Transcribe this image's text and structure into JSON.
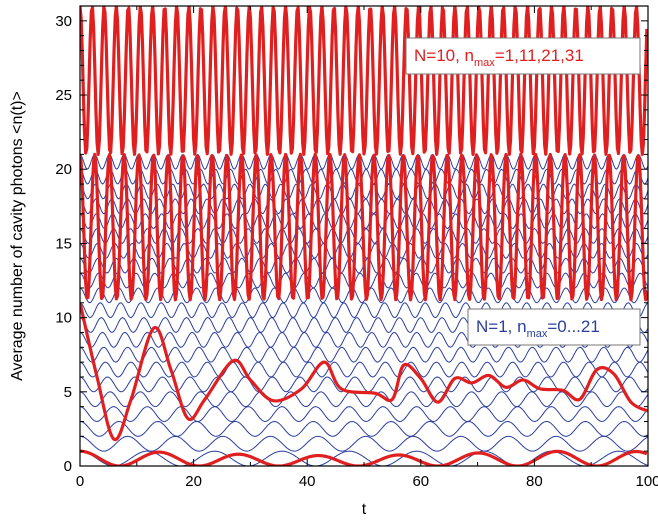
{
  "chart_data": {
    "type": "line",
    "title": "",
    "xlabel": "t",
    "ylabel": "Average number of cavity photons <n(t)>",
    "xlim": [
      0,
      100
    ],
    "ylim": [
      0,
      31
    ],
    "x_ticks": [
      0,
      20,
      40,
      60,
      80,
      100
    ],
    "y_ticks": [
      0,
      5,
      10,
      15,
      20,
      25,
      30
    ],
    "grid": false,
    "legends": [
      {
        "placement": "top-right",
        "main": "N=10, n",
        "sub": "max",
        "tail": "=1,11,21,31",
        "color": "#e02020"
      },
      {
        "placement": "middle-right",
        "main": "N=1, n",
        "sub": "max",
        "tail": "=0...21",
        "color": "#2b3f9e"
      }
    ],
    "colors": {
      "thin_series": "#2b3f9e",
      "thick_series": "#e02020"
    },
    "series": [
      {
        "group": "thin",
        "n_max": 0,
        "x_range": [
          0,
          100
        ],
        "y_min": 0,
        "y_max": 0
      },
      {
        "group": "thin",
        "n_max": 1,
        "x_range": [
          0,
          100
        ],
        "y_min": 0,
        "y_max": 1
      },
      {
        "group": "thin",
        "n_max": 2,
        "x_range": [
          0,
          100
        ],
        "y_min": 1,
        "y_max": 2
      },
      {
        "group": "thin",
        "n_max": 3,
        "x_range": [
          0,
          100
        ],
        "y_min": 2,
        "y_max": 3
      },
      {
        "group": "thin",
        "n_max": 4,
        "x_range": [
          0,
          100
        ],
        "y_min": 3,
        "y_max": 4
      },
      {
        "group": "thin",
        "n_max": 5,
        "x_range": [
          0,
          100
        ],
        "y_min": 4,
        "y_max": 5
      },
      {
        "group": "thin",
        "n_max": 6,
        "x_range": [
          0,
          100
        ],
        "y_min": 5,
        "y_max": 6
      },
      {
        "group": "thin",
        "n_max": 7,
        "x_range": [
          0,
          100
        ],
        "y_min": 6,
        "y_max": 7
      },
      {
        "group": "thin",
        "n_max": 8,
        "x_range": [
          0,
          100
        ],
        "y_min": 7,
        "y_max": 8
      },
      {
        "group": "thin",
        "n_max": 9,
        "x_range": [
          0,
          100
        ],
        "y_min": 8,
        "y_max": 9
      },
      {
        "group": "thin",
        "n_max": 10,
        "x_range": [
          0,
          100
        ],
        "y_min": 9,
        "y_max": 10
      },
      {
        "group": "thin",
        "n_max": 11,
        "x_range": [
          0,
          100
        ],
        "y_min": 10,
        "y_max": 11
      },
      {
        "group": "thin",
        "n_max": 12,
        "x_range": [
          0,
          100
        ],
        "y_min": 11,
        "y_max": 12
      },
      {
        "group": "thin",
        "n_max": 13,
        "x_range": [
          0,
          100
        ],
        "y_min": 12,
        "y_max": 13
      },
      {
        "group": "thin",
        "n_max": 14,
        "x_range": [
          0,
          100
        ],
        "y_min": 13,
        "y_max": 14
      },
      {
        "group": "thin",
        "n_max": 15,
        "x_range": [
          0,
          100
        ],
        "y_min": 14,
        "y_max": 15
      },
      {
        "group": "thin",
        "n_max": 16,
        "x_range": [
          0,
          100
        ],
        "y_min": 15,
        "y_max": 16
      },
      {
        "group": "thin",
        "n_max": 17,
        "x_range": [
          0,
          100
        ],
        "y_min": 16,
        "y_max": 17
      },
      {
        "group": "thin",
        "n_max": 18,
        "x_range": [
          0,
          100
        ],
        "y_min": 17,
        "y_max": 18
      },
      {
        "group": "thin",
        "n_max": 19,
        "x_range": [
          0,
          100
        ],
        "y_min": 18,
        "y_max": 19
      },
      {
        "group": "thin",
        "n_max": 20,
        "x_range": [
          0,
          100
        ],
        "y_min": 19,
        "y_max": 20
      },
      {
        "group": "thin",
        "n_max": 21,
        "x_range": [
          0,
          100
        ],
        "y_min": 20,
        "y_max": 21
      },
      {
        "group": "thick",
        "n_max": 1,
        "x_range": [
          0,
          100
        ],
        "y_min": 0,
        "y_max": 1,
        "peak_t": [
          0,
          7,
          14,
          21,
          28,
          35,
          42,
          49,
          56,
          63,
          70,
          77,
          84,
          91,
          98
        ]
      },
      {
        "group": "thick",
        "n_max": 11,
        "x_range": [
          0,
          100
        ],
        "points": [
          [
            0,
            11
          ],
          [
            3,
            6
          ],
          [
            6,
            1.8
          ],
          [
            9,
            4.5
          ],
          [
            13,
            9.3
          ],
          [
            16,
            6.5
          ],
          [
            19,
            3.2
          ],
          [
            22,
            4.5
          ],
          [
            27,
            7.1
          ],
          [
            30,
            5.8
          ],
          [
            34,
            4.4
          ],
          [
            39,
            5.2
          ],
          [
            43,
            7.0
          ],
          [
            46,
            5.2
          ],
          [
            52,
            4.9
          ],
          [
            55,
            4.5
          ],
          [
            57,
            6.8
          ],
          [
            60,
            5.9
          ],
          [
            63,
            4.3
          ],
          [
            66,
            5.9
          ],
          [
            69,
            5.6
          ],
          [
            72,
            6.1
          ],
          [
            75,
            5.3
          ],
          [
            78,
            5.8
          ],
          [
            81,
            5.2
          ],
          [
            85,
            5.1
          ],
          [
            88,
            4.5
          ],
          [
            91,
            6.5
          ],
          [
            94,
            6.2
          ],
          [
            97,
            4.3
          ],
          [
            100,
            3.7
          ]
        ]
      },
      {
        "group": "thick",
        "n_max": 21,
        "x_range": [
          0,
          100
        ],
        "y_min": 11.2,
        "y_max": 21
      },
      {
        "group": "thick",
        "n_max": 31,
        "x_range": [
          0,
          100
        ],
        "y_min": 21,
        "y_max": 31
      }
    ]
  }
}
